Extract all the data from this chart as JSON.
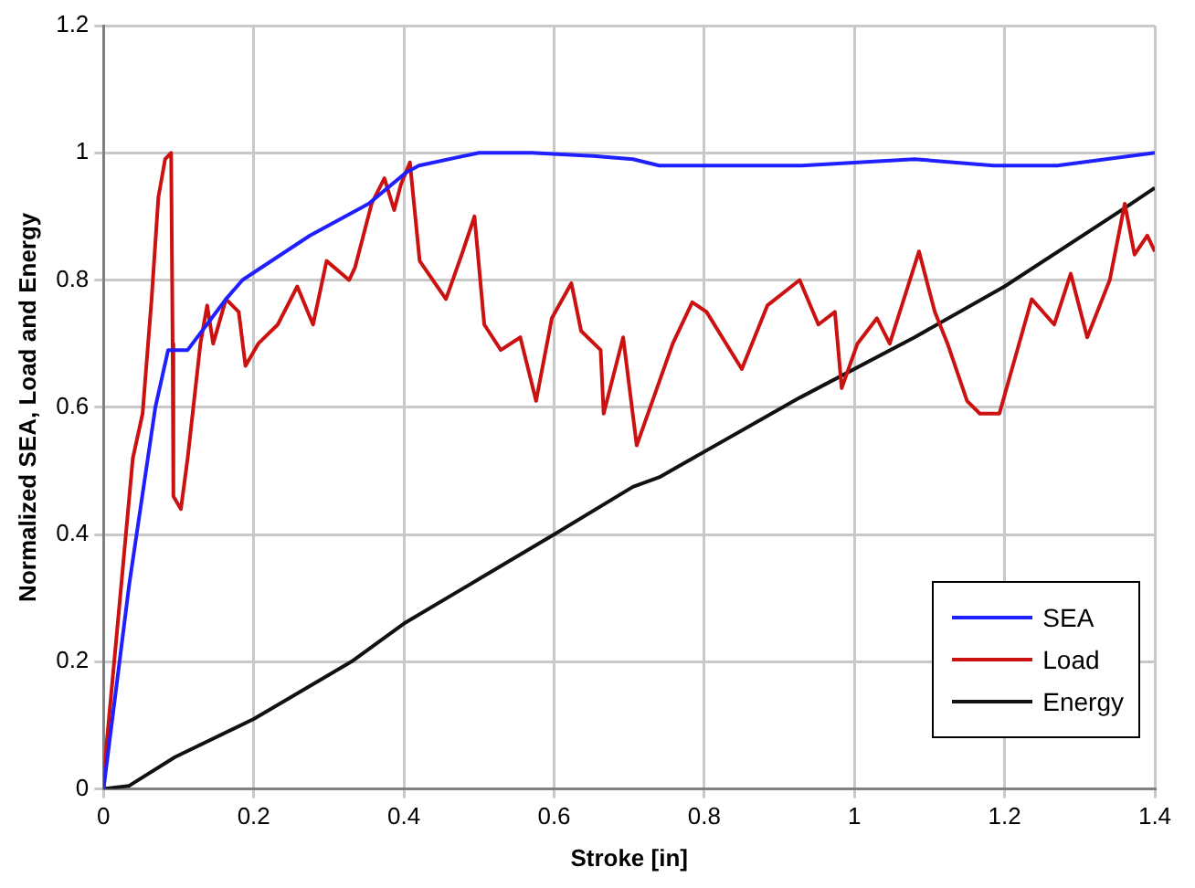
{
  "chart_data": {
    "type": "line",
    "xlabel": "Stroke [in]",
    "ylabel": "Normalized SEA, Load and Energy",
    "xlim": [
      0,
      1.4
    ],
    "xticks": [
      0,
      0.2,
      0.4,
      0.6,
      0.8,
      1,
      1.2,
      1.4
    ],
    "ylim": [
      0,
      1.2
    ],
    "yticks": [
      0,
      0.2,
      0.4,
      0.6,
      0.8,
      1,
      1.2
    ],
    "grid": true,
    "legend": "bottom right",
    "line_style": "solid",
    "series": [
      {
        "name": "SEA",
        "color": "#1f1fff",
        "x": [
          0,
          0.034,
          0.069,
          0.086,
          0.112,
          0.163,
          0.185,
          0.275,
          0.353,
          0.404,
          0.42,
          0.5,
          0.57,
          0.652,
          0.705,
          0.74,
          0.93,
          1.08,
          1.185,
          1.27,
          1.4
        ],
        "values": [
          0,
          0.32,
          0.6,
          0.69,
          0.69,
          0.77,
          0.8,
          0.87,
          0.92,
          0.97,
          0.98,
          1,
          1,
          0.995,
          0.99,
          0.98,
          0.98,
          0.99,
          0.98,
          0.98,
          1
        ]
      },
      {
        "name": "Load",
        "color": "#cc1111",
        "x": [
          0,
          0.004,
          0.022,
          0.039,
          0.052,
          0.064,
          0.073,
          0.082,
          0.09,
          0.092,
          0.093,
          0.103,
          0.112,
          0.129,
          0.138,
          0.146,
          0.163,
          0.18,
          0.189,
          0.206,
          0.232,
          0.258,
          0.279,
          0.297,
          0.327,
          0.335,
          0.357,
          0.374,
          0.387,
          0.396,
          0.408,
          0.421,
          0.456,
          0.477,
          0.494,
          0.507,
          0.529,
          0.555,
          0.576,
          0.597,
          0.623,
          0.636,
          0.662,
          0.666,
          0.692,
          0.71,
          0.758,
          0.784,
          0.803,
          0.85,
          0.884,
          0.927,
          0.952,
          0.974,
          0.983,
          1.004,
          1.03,
          1.047,
          1.086,
          1.107,
          1.124,
          1.15,
          1.167,
          1.193,
          1.236,
          1.266,
          1.288,
          1.31,
          1.34,
          1.36,
          1.373,
          1.39,
          1.4
        ],
        "values": [
          0,
          0.07,
          0.3,
          0.52,
          0.59,
          0.77,
          0.93,
          0.99,
          1,
          0.7,
          0.46,
          0.44,
          0.52,
          0.7,
          0.76,
          0.7,
          0.77,
          0.75,
          0.665,
          0.7,
          0.73,
          0.79,
          0.73,
          0.83,
          0.8,
          0.82,
          0.92,
          0.96,
          0.91,
          0.95,
          0.985,
          0.83,
          0.77,
          0.84,
          0.9,
          0.73,
          0.69,
          0.71,
          0.61,
          0.74,
          0.795,
          0.72,
          0.69,
          0.59,
          0.71,
          0.54,
          0.7,
          0.765,
          0.75,
          0.66,
          0.76,
          0.8,
          0.73,
          0.75,
          0.63,
          0.7,
          0.74,
          0.7,
          0.845,
          0.75,
          0.7,
          0.61,
          0.59,
          0.59,
          0.77,
          0.73,
          0.81,
          0.71,
          0.8,
          0.92,
          0.84,
          0.87,
          0.845
        ]
      },
      {
        "name": "Energy",
        "color": "#111111",
        "x": [
          0,
          0.034,
          0.095,
          0.2,
          0.33,
          0.4,
          0.5,
          0.6,
          0.705,
          0.74,
          0.927,
          1.08,
          1.2,
          1.356,
          1.4
        ],
        "values": [
          0,
          0.005,
          0.05,
          0.11,
          0.2,
          0.26,
          0.33,
          0.4,
          0.475,
          0.49,
          0.615,
          0.71,
          0.79,
          0.91,
          0.945
        ]
      }
    ]
  }
}
